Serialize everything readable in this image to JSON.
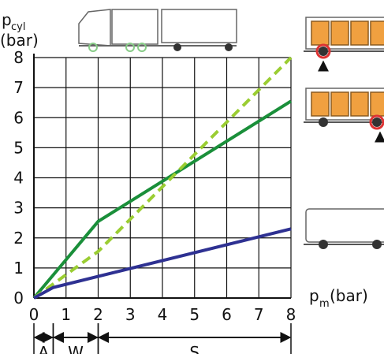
{
  "chart_data": {
    "type": "line",
    "y_label": "p",
    "y_label_sub": "cyl",
    "y_label_unit": "(bar)",
    "x_label": "p",
    "x_label_sub": "m",
    "x_label_unit": "(bar)",
    "xlim": [
      0,
      8
    ],
    "ylim": [
      0,
      8
    ],
    "xticks": [
      0,
      1,
      2,
      3,
      4,
      5,
      6,
      7,
      8
    ],
    "yticks": [
      0,
      1,
      2,
      3,
      4,
      5,
      6,
      7,
      8
    ],
    "grid": true,
    "series": [
      {
        "color": "#1a8f3a",
        "style": "solid",
        "x": [
          0,
          2,
          8
        ],
        "values": [
          0,
          2.55,
          6.55
        ]
      },
      {
        "color": "#9acd32",
        "style": "dashed",
        "x": [
          0,
          2,
          8
        ],
        "values": [
          0,
          1.55,
          8
        ]
      },
      {
        "color": "#2e3192",
        "style": "solid",
        "x": [
          0,
          0.6,
          8
        ],
        "values": [
          0,
          0.35,
          2.3
        ]
      }
    ],
    "regions": [
      {
        "label": "A",
        "range": [
          0,
          0.6
        ]
      },
      {
        "label": "W",
        "range": [
          0.6,
          2
        ]
      },
      {
        "label": "S",
        "range": [
          2,
          8
        ]
      }
    ]
  }
}
